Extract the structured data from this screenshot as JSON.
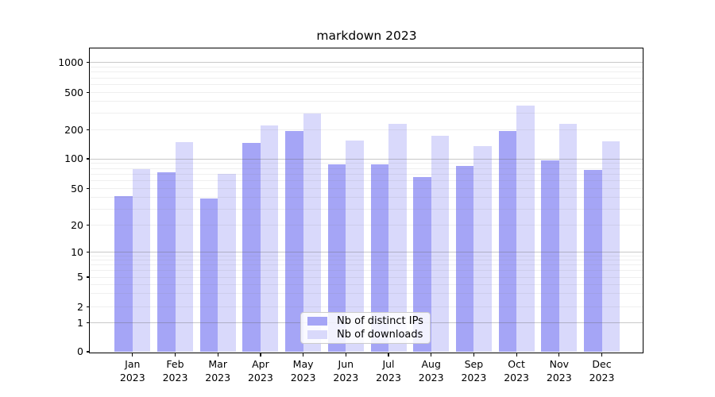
{
  "title": "markdown 2023",
  "chart_data": {
    "type": "bar",
    "title": "markdown 2023",
    "x": {
      "months": [
        "Jan",
        "Feb",
        "Mar",
        "Apr",
        "May",
        "Jun",
        "Jul",
        "Aug",
        "Sep",
        "Oct",
        "Nov",
        "Dec"
      ],
      "year": "2023"
    },
    "series": [
      {
        "name": "Nb of distinct IPs",
        "color": "#a5a5f6",
        "values": [
          41,
          73,
          39,
          145,
          195,
          88,
          88,
          65,
          85,
          195,
          97,
          77
        ]
      },
      {
        "name": "Nb of downloads",
        "color": "#d9d9fb",
        "values": [
          78,
          150,
          70,
          222,
          300,
          155,
          232,
          174,
          135,
          360,
          232,
          152
        ]
      }
    ],
    "y_ticks": [
      0,
      1,
      2,
      5,
      10,
      20,
      50,
      100,
      200,
      500,
      1000
    ],
    "ylim": [
      0,
      1000
    ],
    "yscale": "symlog",
    "grid": true,
    "legend": {
      "position": "lower-center"
    }
  },
  "colors": {
    "bar_dark": "#a5a5f6",
    "bar_light": "#d9d9fb",
    "grid_major": "#b4b4b4",
    "grid_minor": "#ededed",
    "axis": "#000000",
    "legend_border": "#cccccc"
  }
}
